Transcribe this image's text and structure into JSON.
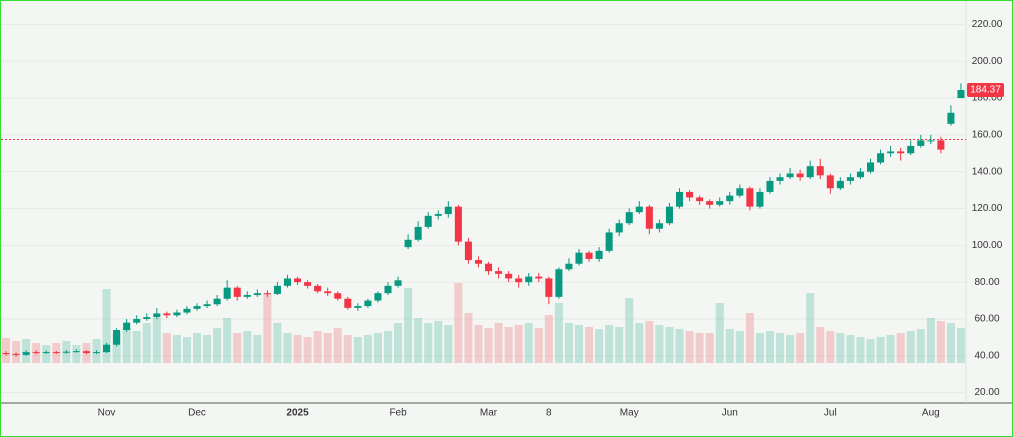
{
  "chart_data": {
    "type": "candlestick",
    "categories": [
      null,
      null,
      null,
      null,
      null,
      null,
      null,
      null,
      null,
      null,
      "Nov",
      null,
      null,
      null,
      null,
      null,
      null,
      null,
      null,
      "Dec",
      null,
      null,
      null,
      null,
      null,
      null,
      null,
      null,
      null,
      "2025",
      null,
      null,
      null,
      null,
      null,
      null,
      null,
      null,
      null,
      "Feb",
      null,
      null,
      null,
      null,
      null,
      null,
      null,
      null,
      "Mar",
      null,
      null,
      null,
      null,
      null,
      "8",
      null,
      null,
      null,
      null,
      null,
      null,
      null,
      "May",
      null,
      null,
      null,
      null,
      null,
      null,
      null,
      null,
      null,
      "Jun",
      null,
      null,
      null,
      null,
      null,
      null,
      null,
      null,
      null,
      "Jul",
      null,
      null,
      null,
      null,
      null,
      null,
      null,
      null,
      null,
      "Aug",
      null,
      null,
      null
    ],
    "open": [
      41.5,
      41,
      40.5,
      42,
      41.5,
      42,
      41.8,
      42.2,
      42.5,
      41.5,
      42,
      46,
      54,
      58,
      60,
      61,
      63,
      62,
      63.5,
      65.5,
      67,
      68,
      71,
      77,
      72,
      73,
      74,
      73.6,
      78,
      82,
      80,
      78,
      75,
      74,
      71,
      66,
      67,
      70,
      74,
      78,
      99,
      103,
      110,
      116,
      117,
      121,
      102,
      92,
      90,
      86,
      84.5,
      82,
      80,
      83,
      82,
      72,
      87,
      90,
      96,
      92.6,
      97,
      107,
      112,
      118,
      121,
      109,
      112,
      121,
      129,
      126,
      124,
      122,
      124,
      127,
      131,
      121,
      129,
      135,
      137,
      139,
      137,
      143,
      138,
      131,
      135,
      137,
      140,
      145,
      150,
      151,
      150,
      154,
      157,
      157,
      166,
      180
    ],
    "high": [
      42.5,
      41.8,
      43,
      43,
      42.8,
      42.6,
      43,
      43.5,
      43,
      43,
      47,
      55,
      60,
      62,
      63,
      66,
      64,
      65,
      67,
      68.5,
      70,
      73,
      81,
      78,
      75,
      76,
      75.5,
      80,
      84,
      83,
      81,
      79,
      77,
      75,
      72,
      68.5,
      71,
      75,
      80,
      83,
      106,
      113,
      118,
      119,
      124,
      122,
      104,
      94,
      91,
      88,
      86,
      84,
      85,
      85,
      83,
      88,
      93,
      98,
      97,
      99,
      109,
      114,
      120,
      124,
      122,
      114,
      123,
      131,
      130,
      127,
      125,
      126,
      129,
      133,
      132,
      131,
      137,
      139,
      142,
      141,
      146,
      147,
      139,
      137,
      139,
      142,
      147,
      152,
      154,
      153,
      157,
      160,
      160,
      159,
      176,
      188
    ],
    "low": [
      40,
      39.5,
      40,
      40.8,
      41,
      41,
      41.2,
      41.8,
      40.8,
      41,
      41.5,
      45,
      53,
      57,
      59,
      60,
      60.5,
      61,
      62.5,
      64.5,
      66,
      67,
      70,
      70,
      71,
      72,
      72,
      73,
      77,
      78.5,
      76.5,
      74,
      72.5,
      70,
      65,
      64.5,
      66,
      69,
      73,
      77,
      98,
      102,
      109,
      114,
      115,
      100,
      90,
      88,
      84,
      82,
      80,
      77,
      78,
      80,
      68,
      71,
      86,
      89,
      91,
      91,
      96,
      105,
      111,
      117,
      106,
      107,
      111,
      120,
      124,
      122,
      120,
      121,
      122,
      126,
      119,
      120,
      128,
      133,
      136,
      135,
      136,
      136,
      128,
      130,
      133,
      136,
      139,
      144,
      148,
      146,
      149,
      153,
      155,
      150,
      165,
      180
    ],
    "close": [
      41,
      40.5,
      42,
      41.5,
      42,
      41.8,
      42.2,
      42.5,
      41.5,
      42,
      46,
      54,
      58,
      60,
      61,
      63,
      62,
      63.5,
      65.5,
      67,
      68,
      71,
      77,
      72,
      73,
      74,
      73.6,
      78,
      82,
      80,
      78,
      75,
      74,
      71,
      66,
      67,
      70,
      74,
      78,
      81,
      103,
      110,
      116,
      117,
      121,
      102,
      92,
      90,
      86,
      84.5,
      82,
      80,
      83,
      82,
      72,
      87,
      90,
      96,
      92.6,
      97,
      107,
      112,
      118,
      121,
      109,
      112,
      121,
      129,
      126,
      124,
      122,
      124,
      127,
      131,
      121,
      129,
      135,
      137,
      139,
      137,
      143,
      138,
      131,
      135,
      137,
      140,
      145,
      150,
      151,
      150,
      154,
      157,
      157,
      152,
      172,
      184.37
    ],
    "volume": [
      25,
      22,
      24,
      20,
      18,
      20,
      22,
      18,
      20,
      24,
      74,
      30,
      35,
      32,
      40,
      45,
      30,
      28,
      26,
      30,
      28,
      35,
      45,
      30,
      32,
      28,
      70,
      40,
      30,
      28,
      26,
      32,
      30,
      35,
      28,
      26,
      28,
      30,
      32,
      40,
      75,
      45,
      40,
      42,
      38,
      80,
      50,
      38,
      35,
      40,
      36,
      38,
      40,
      35,
      48,
      60,
      40,
      38,
      36,
      34,
      38,
      36,
      65,
      40,
      42,
      38,
      36,
      34,
      32,
      30,
      30,
      60,
      34,
      32,
      50,
      30,
      32,
      30,
      28,
      30,
      70,
      36,
      32,
      30,
      28,
      26,
      24,
      26,
      28,
      30,
      32,
      34,
      45,
      42,
      40,
      35
    ],
    "up_color": "#089981",
    "down_color": "#f23645",
    "reference_line": 157.5,
    "ylim": [
      10,
      230
    ],
    "yticks": [
      {
        "value": 20,
        "label": "20.00"
      },
      {
        "value": 40,
        "label": "40.00"
      },
      {
        "value": 60,
        "label": "60.00"
      },
      {
        "value": 80,
        "label": "80.00"
      },
      {
        "value": 100,
        "label": "100.00"
      },
      {
        "value": 120,
        "label": "120.00"
      },
      {
        "value": 140,
        "label": "140.00"
      },
      {
        "value": 160,
        "label": "160.00"
      },
      {
        "value": 180,
        "label": "180.00"
      },
      {
        "value": 200,
        "label": "200.00"
      },
      {
        "value": 220,
        "label": "220.00"
      }
    ],
    "grid": true
  }
}
